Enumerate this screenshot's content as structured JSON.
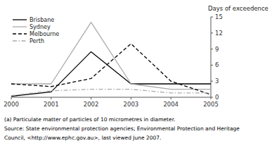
{
  "chart_data": {
    "type": "line",
    "x": [
      2000,
      2001,
      2002,
      2003,
      2004,
      2005
    ],
    "xlim": [
      2000,
      2005
    ],
    "xticks": [
      2000,
      2001,
      2002,
      2003,
      2004,
      2005
    ],
    "ylim": [
      0,
      15
    ],
    "yticks": [
      0,
      3,
      6,
      9,
      12,
      15
    ],
    "ylabel": "Days of exceedence",
    "grid": false,
    "legend": "upper left",
    "series": [
      {
        "name": "Brisbane",
        "color": "#000000",
        "line_style": "solid",
        "values": [
          0.2,
          1.0,
          8.5,
          2.5,
          2.5,
          2.5
        ]
      },
      {
        "name": "Sydney",
        "color": "#aaaaaa",
        "line_style": "solid",
        "values": [
          2.5,
          2.5,
          14.0,
          2.5,
          1.5,
          1.5
        ]
      },
      {
        "name": "Melbourne",
        "color": "#000000",
        "line_style": "dashed",
        "values": [
          2.5,
          2.0,
          3.5,
          10.0,
          3.0,
          0.5
        ]
      },
      {
        "name": "Perth",
        "color": "#aaaaaa",
        "line_style": "dashdot",
        "values": [
          0.3,
          1.2,
          1.5,
          1.5,
          0.8,
          0.8
        ]
      }
    ],
    "annotations": [
      "(a) Particulate matter of particles of 10 micrometres in diameter.",
      "Source: State environmental protection agencies; Environmental Protection and Heritage",
      "Council, <http://www.ephc.gov.au>, last viewed June 2007."
    ]
  }
}
